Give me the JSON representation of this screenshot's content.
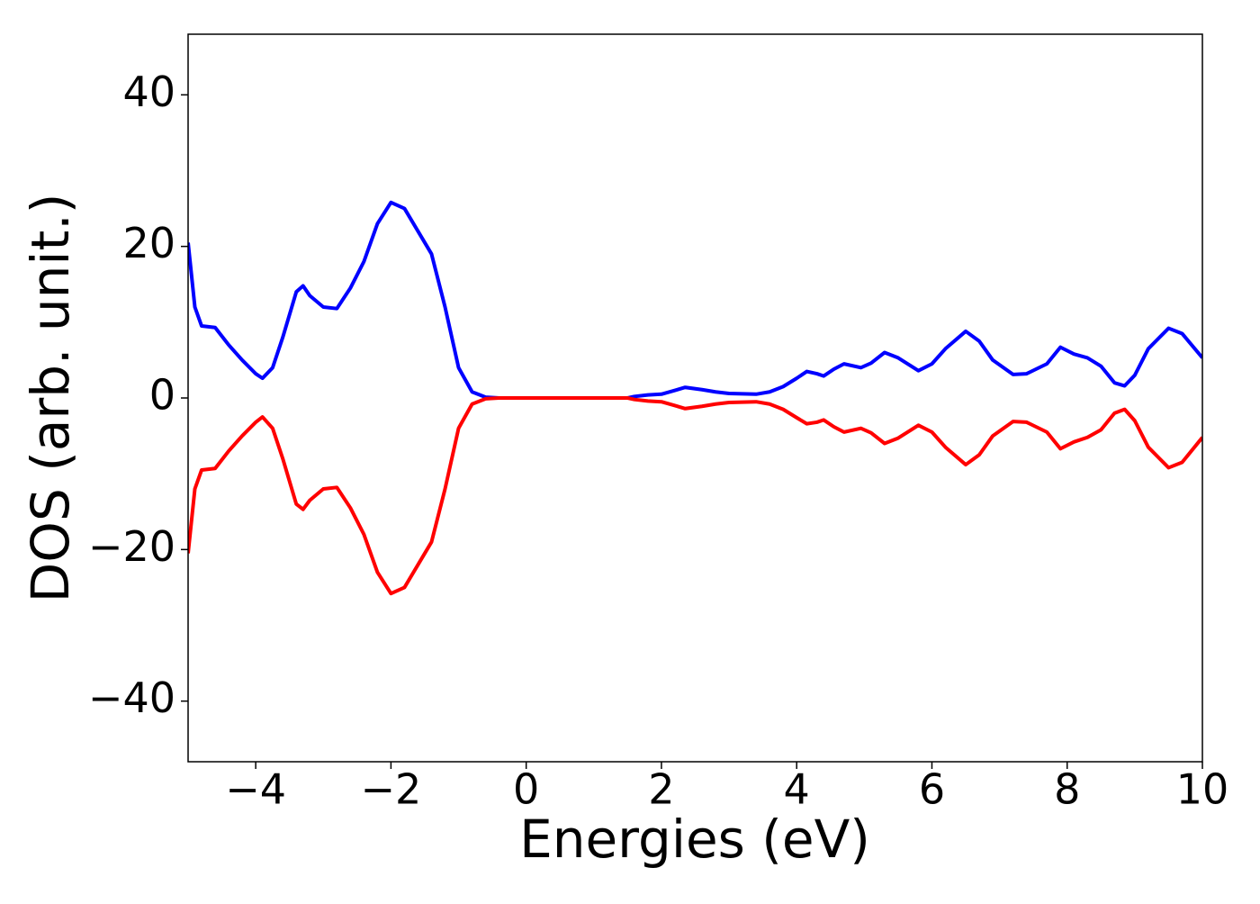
{
  "chart_data": {
    "type": "line",
    "x_label": "Energies (eV)",
    "y_label": "DOS (arb. unit.)",
    "x": [
      -5,
      -4.9,
      -4.8,
      -4.6,
      -4.4,
      -4.2,
      -4.0,
      -3.9,
      -3.75,
      -3.6,
      -3.4,
      -3.3,
      -3.2,
      -3.0,
      -2.8,
      -2.6,
      -2.4,
      -2.2,
      -2.0,
      -1.8,
      -1.6,
      -1.4,
      -1.2,
      -1.0,
      -0.8,
      -0.6,
      -0.4,
      0,
      0.5,
      1.0,
      1.5,
      1.6,
      1.8,
      2.0,
      2.2,
      2.35,
      2.6,
      2.8,
      3.0,
      3.4,
      3.6,
      3.8,
      4.0,
      4.15,
      4.3,
      4.4,
      4.55,
      4.7,
      4.95,
      5.1,
      5.3,
      5.5,
      5.8,
      6.0,
      6.2,
      6.5,
      6.7,
      6.9,
      7.2,
      7.4,
      7.7,
      7.9,
      8.1,
      8.3,
      8.5,
      8.7,
      8.85,
      9.0,
      9.2,
      9.5,
      9.7,
      10
    ],
    "series": [
      {
        "color": "#0000ff",
        "values": [
          20.5,
          12,
          9.5,
          9.3,
          7,
          5,
          3.2,
          2.6,
          4,
          8,
          14,
          14.8,
          13.5,
          12,
          11.8,
          14.5,
          18,
          23,
          25.8,
          25,
          22,
          19,
          12,
          4,
          0.8,
          0.1,
          0,
          0,
          0,
          0,
          0,
          0.2,
          0.4,
          0.5,
          1,
          1.4,
          1.1,
          0.8,
          0.6,
          0.5,
          0.8,
          1.5,
          2.6,
          3.5,
          3.2,
          2.9,
          3.8,
          4.5,
          4.0,
          4.6,
          6.0,
          5.3,
          3.6,
          4.5,
          6.5,
          8.8,
          7.5,
          5,
          3.1,
          3.2,
          4.5,
          6.7,
          5.8,
          5.3,
          4.2,
          2,
          1.6,
          3.0,
          6.5,
          9.2,
          8.5,
          5.3
        ]
      },
      {
        "color": "#ff0000",
        "values": [
          -20.5,
          -12,
          -9.5,
          -9.3,
          -7,
          -5,
          -3.2,
          -2.5,
          -4,
          -8,
          -14,
          -14.7,
          -13.5,
          -12,
          -11.8,
          -14.5,
          -18,
          -23,
          -25.8,
          -25,
          -22,
          -19,
          -12,
          -4,
          -0.8,
          -0.1,
          0,
          0,
          0,
          0,
          0,
          -0.2,
          -0.4,
          -0.5,
          -1,
          -1.4,
          -1.1,
          -0.8,
          -0.6,
          -0.5,
          -0.8,
          -1.5,
          -2.6,
          -3.4,
          -3.2,
          -2.9,
          -3.8,
          -4.5,
          -4.0,
          -4.6,
          -6.0,
          -5.3,
          -3.6,
          -4.5,
          -6.5,
          -8.8,
          -7.5,
          -5,
          -3.1,
          -3.2,
          -4.5,
          -6.7,
          -5.8,
          -5.2,
          -4.2,
          -2,
          -1.5,
          -3.0,
          -6.5,
          -9.2,
          -8.5,
          -5.2
        ]
      }
    ],
    "xlim": [
      -5,
      10
    ],
    "ylim": [
      -48,
      48
    ],
    "xticks": [
      {
        "value": -4,
        "label": "−4"
      },
      {
        "value": -2,
        "label": "−2"
      },
      0,
      2,
      4,
      6,
      8,
      10
    ],
    "yticks": [
      {
        "value": -40,
        "label": "−40"
      },
      {
        "value": -20,
        "label": "−20"
      },
      0,
      20,
      40
    ]
  }
}
